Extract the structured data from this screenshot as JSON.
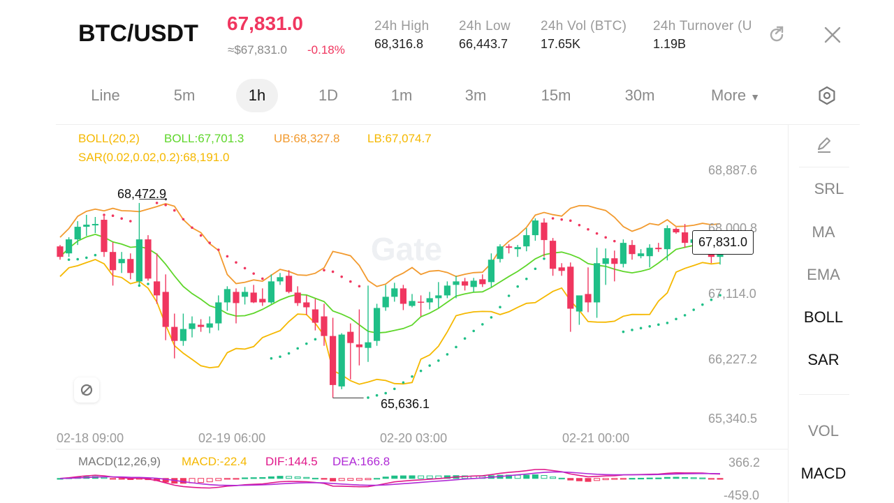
{
  "header": {
    "pair": "BTC/USDT",
    "last_price": "67,831.0",
    "fiat_price": "≈$67,831.0",
    "change": "-0.18%",
    "stats": [
      {
        "label": "24h  High",
        "value": "68,316.8"
      },
      {
        "label": "24h  Low",
        "value": "66,443.7"
      },
      {
        "label": "24h  Vol (BTC)",
        "value": "17.65K"
      },
      {
        "label": "24h  Turnover (U",
        "value": "1.19B"
      }
    ]
  },
  "tabs": [
    "Line",
    "5m",
    "1h",
    "1D",
    "1m",
    "3m",
    "15m",
    "30m"
  ],
  "active_tab": "1h",
  "more_label": "More",
  "indicators": {
    "boll": "BOLL(20,2)",
    "mid": "BOLL:67,701.3",
    "ub": "UB:68,327.8",
    "lb": "LB:67,074.7",
    "sar": "SAR(0.02,0.02,0.2):68,191.0"
  },
  "price_axis": [
    "68,887.6",
    "68,000.8",
    "67,114.0",
    "66,227.2",
    "65,340.5"
  ],
  "time_axis": [
    "02-18 09:00",
    "02-19 06:00",
    "02-20 03:00",
    "02-21 00:00"
  ],
  "current_price_tag": "67,831.0",
  "high_marker": "68,472.9",
  "low_marker": "65,636.1",
  "watermark": "Gate",
  "sidebar": [
    "SRL",
    "MA",
    "EMA",
    "BOLL",
    "SAR",
    "VOL",
    "MACD"
  ],
  "sidebar_active": [
    "BOLL",
    "SAR",
    "MACD"
  ],
  "macd": {
    "title": "MACD(12,26,9)",
    "macd": "MACD:-22.4",
    "dif": "DIF:144.5",
    "dea": "DEA:166.8",
    "axis_top": "366.2",
    "axis_bottom": "-459.0"
  },
  "colors": {
    "up": "#1fbf87",
    "down": "#f0365f",
    "boll_outer": "#f29a2e",
    "boll_lower": "#f5b800",
    "boll_mid": "#5ed62a",
    "sar": "#f0365f",
    "dif": "#e0188a",
    "dea": "#b02ad6"
  },
  "chart_data": {
    "type": "candlestick",
    "interval": "1h",
    "candles_ohlc": [
      [
        67800,
        67820,
        67610,
        67650
      ],
      [
        67700,
        67930,
        67650,
        67900
      ],
      [
        67900,
        68160,
        67820,
        68080
      ],
      [
        68080,
        68250,
        67950,
        68110
      ],
      [
        68100,
        68220,
        67990,
        68120
      ],
      [
        68180,
        68230,
        67650,
        67720
      ],
      [
        67720,
        67860,
        67240,
        67460
      ],
      [
        67560,
        67720,
        67420,
        67620
      ],
      [
        67620,
        67700,
        67330,
        67420
      ],
      [
        67300,
        68420,
        67250,
        67900
      ],
      [
        67900,
        67960,
        67310,
        67340
      ],
      [
        67300,
        67700,
        66980,
        67100
      ],
      [
        67150,
        67400,
        66460,
        66650
      ],
      [
        66650,
        66840,
        66200,
        66450
      ],
      [
        66450,
        66840,
        66380,
        66620
      ],
      [
        66620,
        66800,
        66500,
        66700
      ],
      [
        66680,
        66760,
        66580,
        66650
      ],
      [
        66640,
        66800,
        66560,
        66700
      ],
      [
        66700,
        67100,
        66600,
        67000
      ],
      [
        67000,
        67230,
        66880,
        67190
      ],
      [
        67150,
        67200,
        66700,
        66990
      ],
      [
        67080,
        67220,
        66970,
        67150
      ],
      [
        67140,
        67250,
        66990,
        67000
      ],
      [
        67050,
        67200,
        66950,
        67000
      ],
      [
        67000,
        67400,
        66980,
        67300
      ],
      [
        67300,
        67420,
        67250,
        67360
      ],
      [
        67380,
        67460,
        67130,
        67150
      ],
      [
        67140,
        67230,
        66950,
        66990
      ],
      [
        67000,
        67100,
        66820,
        66930
      ],
      [
        66900,
        67050,
        66600,
        66710
      ],
      [
        66800,
        66980,
        66380,
        66520
      ],
      [
        66520,
        66780,
        65640,
        65820
      ],
      [
        65800,
        66560,
        65760,
        66540
      ],
      [
        66580,
        66700,
        65900,
        66420
      ],
      [
        66400,
        66900,
        66100,
        66360
      ],
      [
        66350,
        67240,
        66150,
        66430
      ],
      [
        66450,
        66980,
        66380,
        66920
      ],
      [
        66930,
        67250,
        66880,
        67080
      ],
      [
        67080,
        67280,
        67010,
        67200
      ],
      [
        67200,
        67250,
        66890,
        66980
      ],
      [
        66950,
        67120,
        66930,
        67020
      ],
      [
        67010,
        67100,
        66800,
        67000
      ],
      [
        67000,
        67150,
        66900,
        67060
      ],
      [
        67060,
        67290,
        66920,
        67100
      ],
      [
        67100,
        67300,
        67060,
        67240
      ],
      [
        67250,
        67380,
        67060,
        67300
      ],
      [
        67300,
        67350,
        67170,
        67240
      ],
      [
        67220,
        67350,
        67150,
        67310
      ],
      [
        67330,
        67400,
        67220,
        67260
      ],
      [
        67290,
        67700,
        67220,
        67610
      ],
      [
        67620,
        67830,
        67570,
        67800
      ],
      [
        67800,
        67830,
        67700,
        67780
      ],
      [
        67760,
        67820,
        67650,
        67790
      ],
      [
        67800,
        68060,
        67730,
        67960
      ],
      [
        67960,
        68200,
        67880,
        68170
      ],
      [
        68140,
        68200,
        67650,
        67890
      ],
      [
        67880,
        67920,
        67380,
        67480
      ],
      [
        67500,
        67560,
        67380,
        67450
      ],
      [
        67510,
        67570,
        66580,
        66910
      ],
      [
        66870,
        67020,
        66680,
        67100
      ],
      [
        67120,
        67500,
        66860,
        67000
      ],
      [
        67000,
        67780,
        66780,
        67560
      ],
      [
        67550,
        67770,
        67250,
        67630
      ],
      [
        67630,
        67740,
        67300,
        67550
      ],
      [
        67550,
        67900,
        67500,
        67850
      ],
      [
        67820,
        67890,
        67610,
        67690
      ],
      [
        67660,
        67760,
        67630,
        67700
      ],
      [
        67660,
        67830,
        67500,
        67780
      ],
      [
        67780,
        67850,
        67720,
        67760
      ],
      [
        67760,
        68100,
        67600,
        68060
      ],
      [
        68050,
        68070,
        67980,
        68000
      ],
      [
        68000,
        68120,
        67780,
        67850
      ],
      [
        67850,
        67920,
        67770,
        67900
      ],
      [
        67910,
        67980,
        67810,
        67900
      ],
      [
        67900,
        67930,
        67560,
        67650
      ],
      [
        67650,
        67860,
        67540,
        67830
      ]
    ],
    "title": "BTC/USDT",
    "ylim": [
      65340.5,
      68887.6
    ],
    "y_ticks": [
      68887.6,
      68000.8,
      67114.0,
      66227.2,
      65340.5
    ],
    "x_ticks": [
      "02-18 09:00",
      "02-19 06:00",
      "02-20 03:00",
      "02-21 00:00"
    ],
    "annotations": {
      "high": 68472.9,
      "low": 65636.1,
      "last": 67831.0
    },
    "boll": {
      "mid": 67701.3,
      "upper": 68327.8,
      "lower": 67074.7
    },
    "sar": 68191.0,
    "macd": {
      "hist": -22.4,
      "dif": 144.5,
      "dea": 166.8,
      "ylim": [
        -459.0,
        366.2
      ]
    }
  }
}
